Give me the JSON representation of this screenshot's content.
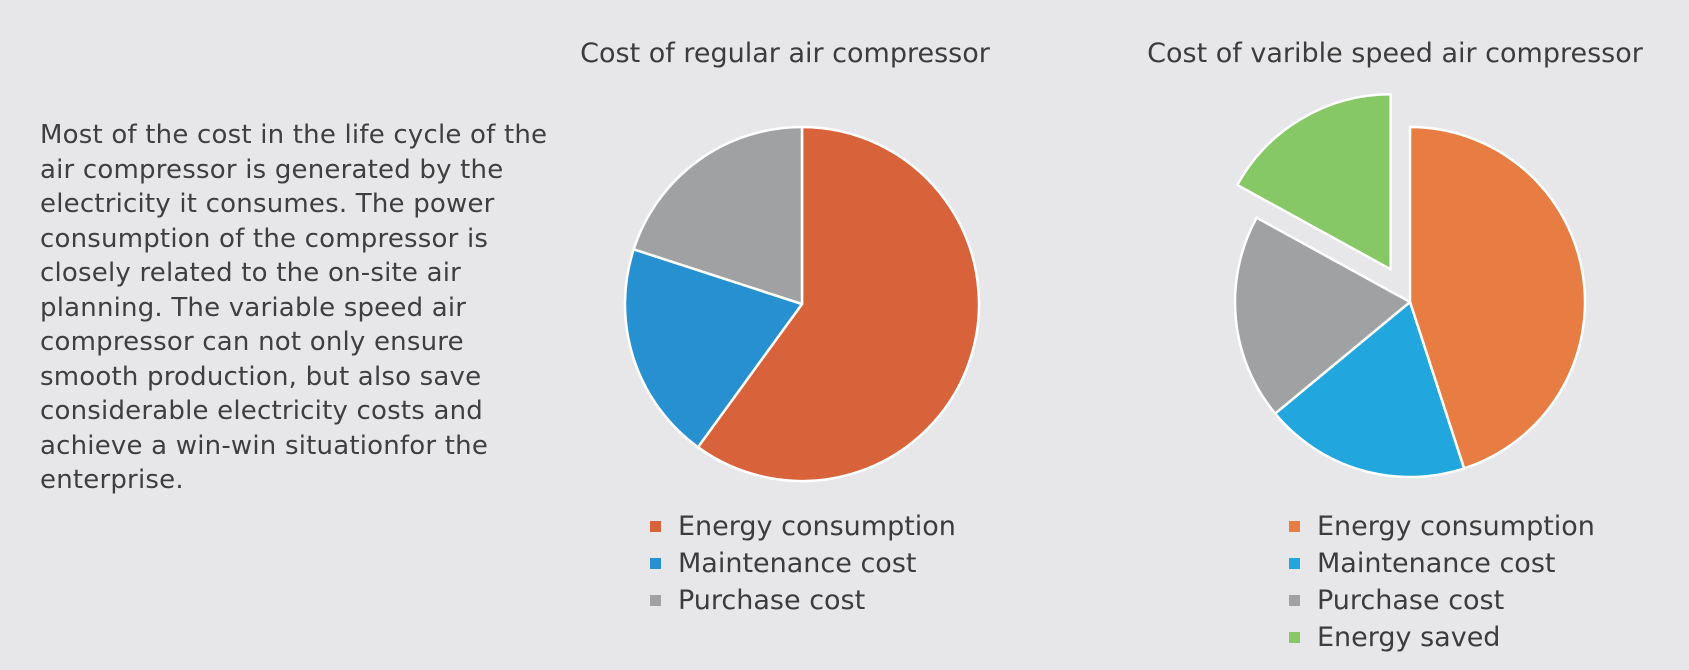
{
  "description": "Most of the cost in the life cycle of the air compressor is generated by the electricity it consumes. The power consumption of the compressor is closely related  to the on-site air planning. The variable speed air compressor can not only ensure smooth production, but also save considerable electricity costs and achieve a win-win situationfor the enterprise.",
  "chart_data": [
    {
      "type": "pie",
      "title": "Cost of regular air compressor",
      "legend_position": "bottom",
      "start_angle_deg": 0,
      "direction": "clockwise",
      "slices": [
        {
          "label": "Energy consumption",
          "value": 60,
          "color": "#d8623a"
        },
        {
          "label": "Maintenance cost",
          "value": 20,
          "color": "#2790d0"
        },
        {
          "label": "Purchase cost",
          "value": 20,
          "color": "#a0a1a3"
        }
      ]
    },
    {
      "type": "pie",
      "title": "Cost of varible speed air compressor",
      "legend_position": "bottom",
      "start_angle_deg": 0,
      "direction": "clockwise",
      "exploded": [
        "Energy saved"
      ],
      "slices": [
        {
          "label": "Energy consumption",
          "value": 45,
          "color": "#e77d43"
        },
        {
          "label": "Maintenance cost",
          "value": 19,
          "color": "#21a6dd"
        },
        {
          "label": "Purchase cost",
          "value": 19,
          "color": "#a0a1a3"
        },
        {
          "label": "Energy saved",
          "value": 17,
          "color": "#86c865"
        }
      ]
    }
  ]
}
